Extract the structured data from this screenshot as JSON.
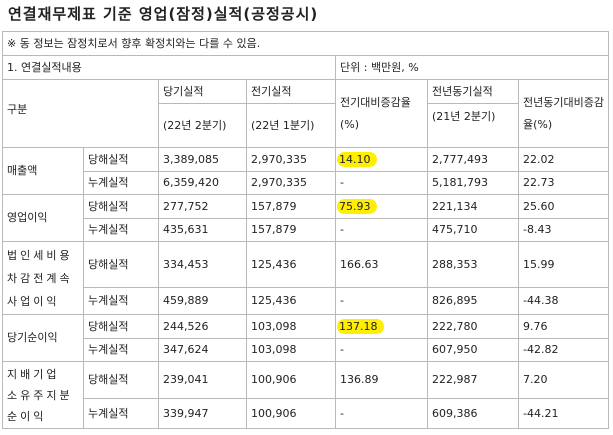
{
  "title": "연결재무제표 기준 영업(잠정)실적(공정공시)",
  "notice": "※ 동 정보는 잠정치로서 향후 확정치와는 다를 수 있음.",
  "section": {
    "label": "1. 연결실적내용",
    "unit": "단위 : 백만원, %"
  },
  "headers": {
    "category": "구분",
    "current": "당기실적",
    "current_period": "(22년 2분기)",
    "previous": "전기실적",
    "previous_period": "(22년 1분기)",
    "qoq": "전기대비증감율(%)",
    "yoy_period_label": "전년동기실적",
    "yoy_period": "(21년 2분기)",
    "yoy": "전년동기대비증감율(%)"
  },
  "groups": [
    {
      "name": "매출액",
      "rows": [
        {
          "type": "당해실적",
          "current": "3,389,085",
          "previous": "2,970,335",
          "qoq": "14.10",
          "qoq_highlight": true,
          "prior_year": "2,777,493",
          "yoy": "22.02"
        },
        {
          "type": "누계실적",
          "current": "6,359,420",
          "previous": "2,970,335",
          "qoq": "-",
          "qoq_highlight": false,
          "prior_year": "5,181,793",
          "yoy": "22.73"
        }
      ]
    },
    {
      "name": "영업이익",
      "rows": [
        {
          "type": "당해실적",
          "current": "277,752",
          "previous": "157,879",
          "qoq": "75.93",
          "qoq_highlight": true,
          "prior_year": "221,134",
          "yoy": "25.60"
        },
        {
          "type": "누계실적",
          "current": "435,631",
          "previous": "157,879",
          "qoq": "-",
          "qoq_highlight": false,
          "prior_year": "475,710",
          "yoy": "-8.43"
        }
      ]
    },
    {
      "name": "법인세비용차감전계속사업이익",
      "rows": [
        {
          "type": "당해실적",
          "current": "334,453",
          "previous": "125,436",
          "qoq": "166.63",
          "qoq_highlight": false,
          "prior_year": "288,353",
          "yoy": "15.99"
        },
        {
          "type": "누계실적",
          "current": "459,889",
          "previous": "125,436",
          "qoq": "-",
          "qoq_highlight": false,
          "prior_year": "826,895",
          "yoy": "-44.38"
        }
      ]
    },
    {
      "name": "당기순이익",
      "rows": [
        {
          "type": "당해실적",
          "current": "244,526",
          "previous": "103,098",
          "qoq": "137.18",
          "qoq_highlight": true,
          "prior_year": "222,780",
          "yoy": "9.76"
        },
        {
          "type": "누계실적",
          "current": "347,624",
          "previous": "103,098",
          "qoq": "-",
          "qoq_highlight": false,
          "prior_year": "607,950",
          "yoy": "-42.82"
        }
      ]
    },
    {
      "name": "지배기업 소유주지분 순이익",
      "rows": [
        {
          "type": "당해실적",
          "current": "239,041",
          "previous": "100,906",
          "qoq": "136.89",
          "qoq_highlight": false,
          "prior_year": "222,987",
          "yoy": "7.20"
        },
        {
          "type": "누계실적",
          "current": "339,947",
          "previous": "100,906",
          "qoq": "-",
          "qoq_highlight": false,
          "prior_year": "609,386",
          "yoy": "-44.21"
        }
      ]
    }
  ],
  "colors": {
    "highlight": "#ffee00",
    "border": "#b9b9b9"
  }
}
